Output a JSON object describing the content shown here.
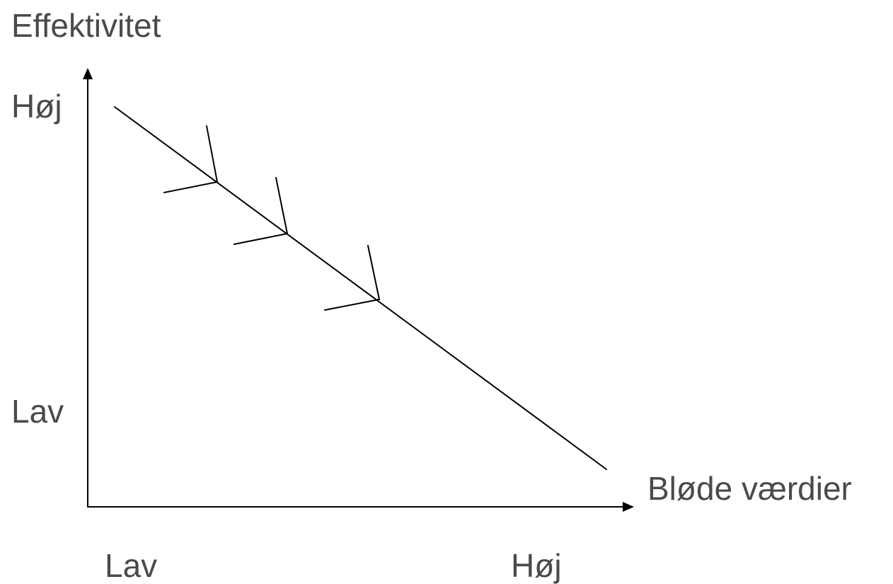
{
  "y_axis": {
    "title": "Effektivitet",
    "high_label": "Høj",
    "low_label": "Lav"
  },
  "x_axis": {
    "title": "Bløde værdier",
    "low_label": "Lav",
    "high_label": "Høj"
  },
  "trend": {
    "direction": "decreasing",
    "chevron_count": 3
  }
}
